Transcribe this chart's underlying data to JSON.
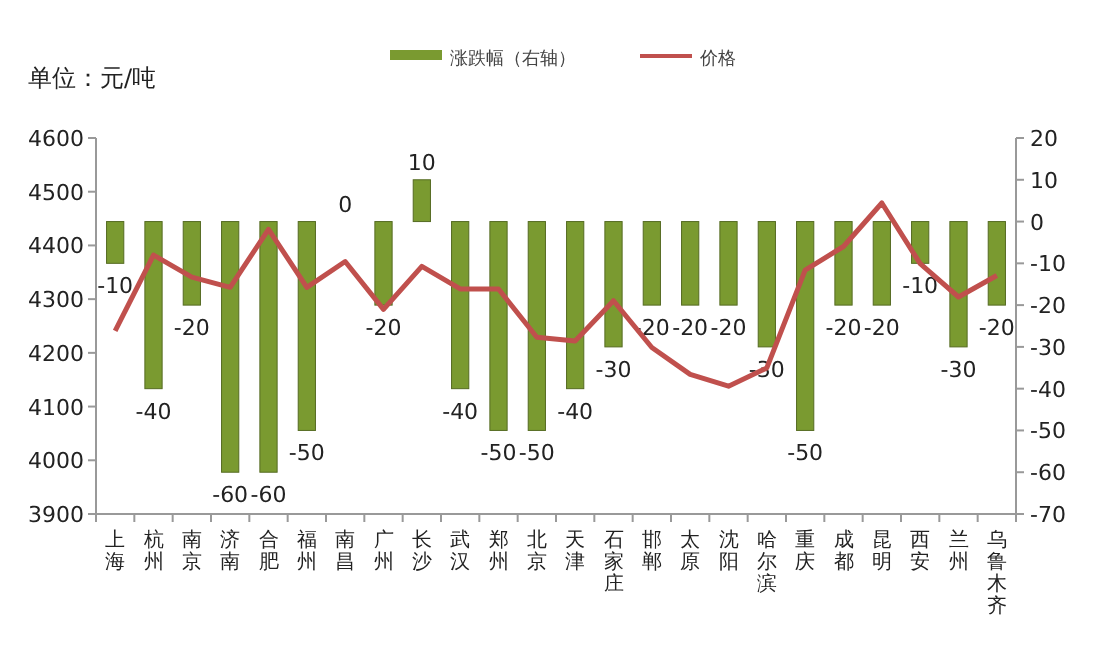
{
  "chart_data": {
    "type": "bar",
    "categories": [
      "上海",
      "杭州",
      "南京",
      "济南",
      "合肥",
      "福州",
      "南昌",
      "广州",
      "长沙",
      "武汉",
      "郑州",
      "北京",
      "天津",
      "石家庄",
      "邯郸",
      "太原",
      "沈阳",
      "哈尔滨",
      "重庆",
      "成都",
      "昆明",
      "西安",
      "兰州",
      "乌鲁木齐"
    ],
    "series": [
      {
        "name": "涨跌幅（右轴）",
        "axis": "y2",
        "color": "#7a9a30",
        "values": [
          -10,
          -40,
          -20,
          -60,
          -60,
          -50,
          0,
          -20,
          10,
          -40,
          -50,
          -50,
          -40,
          -30,
          -20,
          -20,
          -20,
          -30,
          -50,
          -20,
          -20,
          -10,
          -30,
          -20
        ],
        "value_labels": [
          "-10",
          "-40",
          "-20",
          "-60",
          "-60",
          "-50",
          "0",
          "-20",
          "10",
          "-40",
          "-50",
          "-50",
          "-40",
          "-30",
          "-20",
          "-20",
          "-20",
          "-30",
          "-50",
          "-20",
          "-20",
          "-10",
          "-30",
          "-20"
        ]
      },
      {
        "name": "价格",
        "type": "line",
        "color": "#c0504d",
        "values": [
          4241,
          4382,
          4341,
          4322,
          4430,
          4322,
          4370,
          4281,
          4361,
          4319,
          4319,
          4229,
          4222,
          4297,
          4210,
          4160,
          4138,
          4172,
          4354,
          4398,
          4479,
          4366,
          4304,
          4344
        ]
      }
    ],
    "ylim": [
      3900,
      4600
    ],
    "yticks": [
      3900,
      4000,
      4100,
      4200,
      4300,
      4400,
      4500,
      4600
    ],
    "y2lim": [
      -70,
      20
    ],
    "y2ticks": [
      -70,
      -60,
      -50,
      -40,
      -30,
      -20,
      -10,
      0,
      10,
      20
    ],
    "annotations": [
      "单位：元/吨"
    ],
    "legend": "top",
    "grid": false
  }
}
